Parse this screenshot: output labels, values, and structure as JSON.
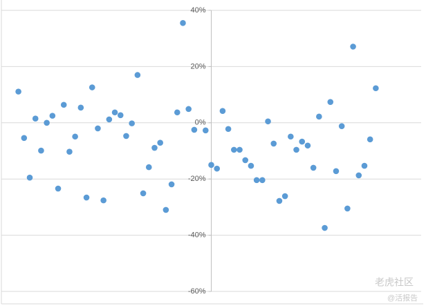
{
  "chart_data": {
    "type": "scatter",
    "color": "#5b9bd5",
    "grid": true,
    "x": [
      -34,
      -33,
      -32,
      -31,
      -30,
      -29,
      -28,
      -27,
      -26,
      -25,
      -24,
      -23,
      -22,
      -21,
      -20,
      -19,
      -18,
      -17,
      -16,
      -15,
      -14,
      -13,
      -12,
      -11,
      -10,
      -9,
      -8,
      -7,
      -6,
      -5,
      -4,
      -3,
      -1,
      0,
      1,
      2,
      3,
      4,
      5,
      6,
      7,
      8,
      9,
      10,
      11,
      12,
      13,
      14,
      15,
      16,
      17,
      18,
      19,
      20,
      21,
      22,
      23,
      24,
      25,
      26,
      27,
      28,
      29
    ],
    "values": [
      11.1,
      -5.4,
      -19.5,
      1.5,
      -9.9,
      0,
      2.5,
      -23.4,
      6.4,
      -10.3,
      -4.9,
      5.4,
      -26.6,
      12.6,
      -2.0,
      -27.6,
      1.2,
      3.7,
      2.7,
      -4.7,
      -0.2,
      17.0,
      -25.1,
      -15.8,
      -8.9,
      -7.1,
      -31.0,
      -21.9,
      3.7,
      35.5,
      4.9,
      -2.5,
      -2.7,
      -15.0,
      -16.3,
      4.2,
      -2.2,
      -9.6,
      -9.6,
      -13.3,
      -15.3,
      -20.4,
      -20.4,
      0.5,
      -7.4,
      -27.8,
      -26.1,
      -4.9,
      -9.6,
      -6.7,
      -8.1,
      -16.0,
      2.2,
      -37.4,
      7.4,
      -17.2,
      -1.2,
      -30.5,
      27.1,
      -18.7,
      -15.3,
      -5.9,
      12.3
    ],
    "xlim": [
      -37,
      37
    ],
    "ylim": [
      -60,
      40
    ],
    "yticks": [
      {
        "value": 40,
        "label": "40%"
      },
      {
        "value": 20,
        "label": "20%"
      },
      {
        "value": 0,
        "label": "0%"
      },
      {
        "value": -20,
        "label": "-20%"
      },
      {
        "value": -40,
        "label": "-40%"
      },
      {
        "value": -60,
        "label": "-60%"
      }
    ]
  },
  "watermark": {
    "brand": "老虎社区",
    "source": "@活报告"
  }
}
